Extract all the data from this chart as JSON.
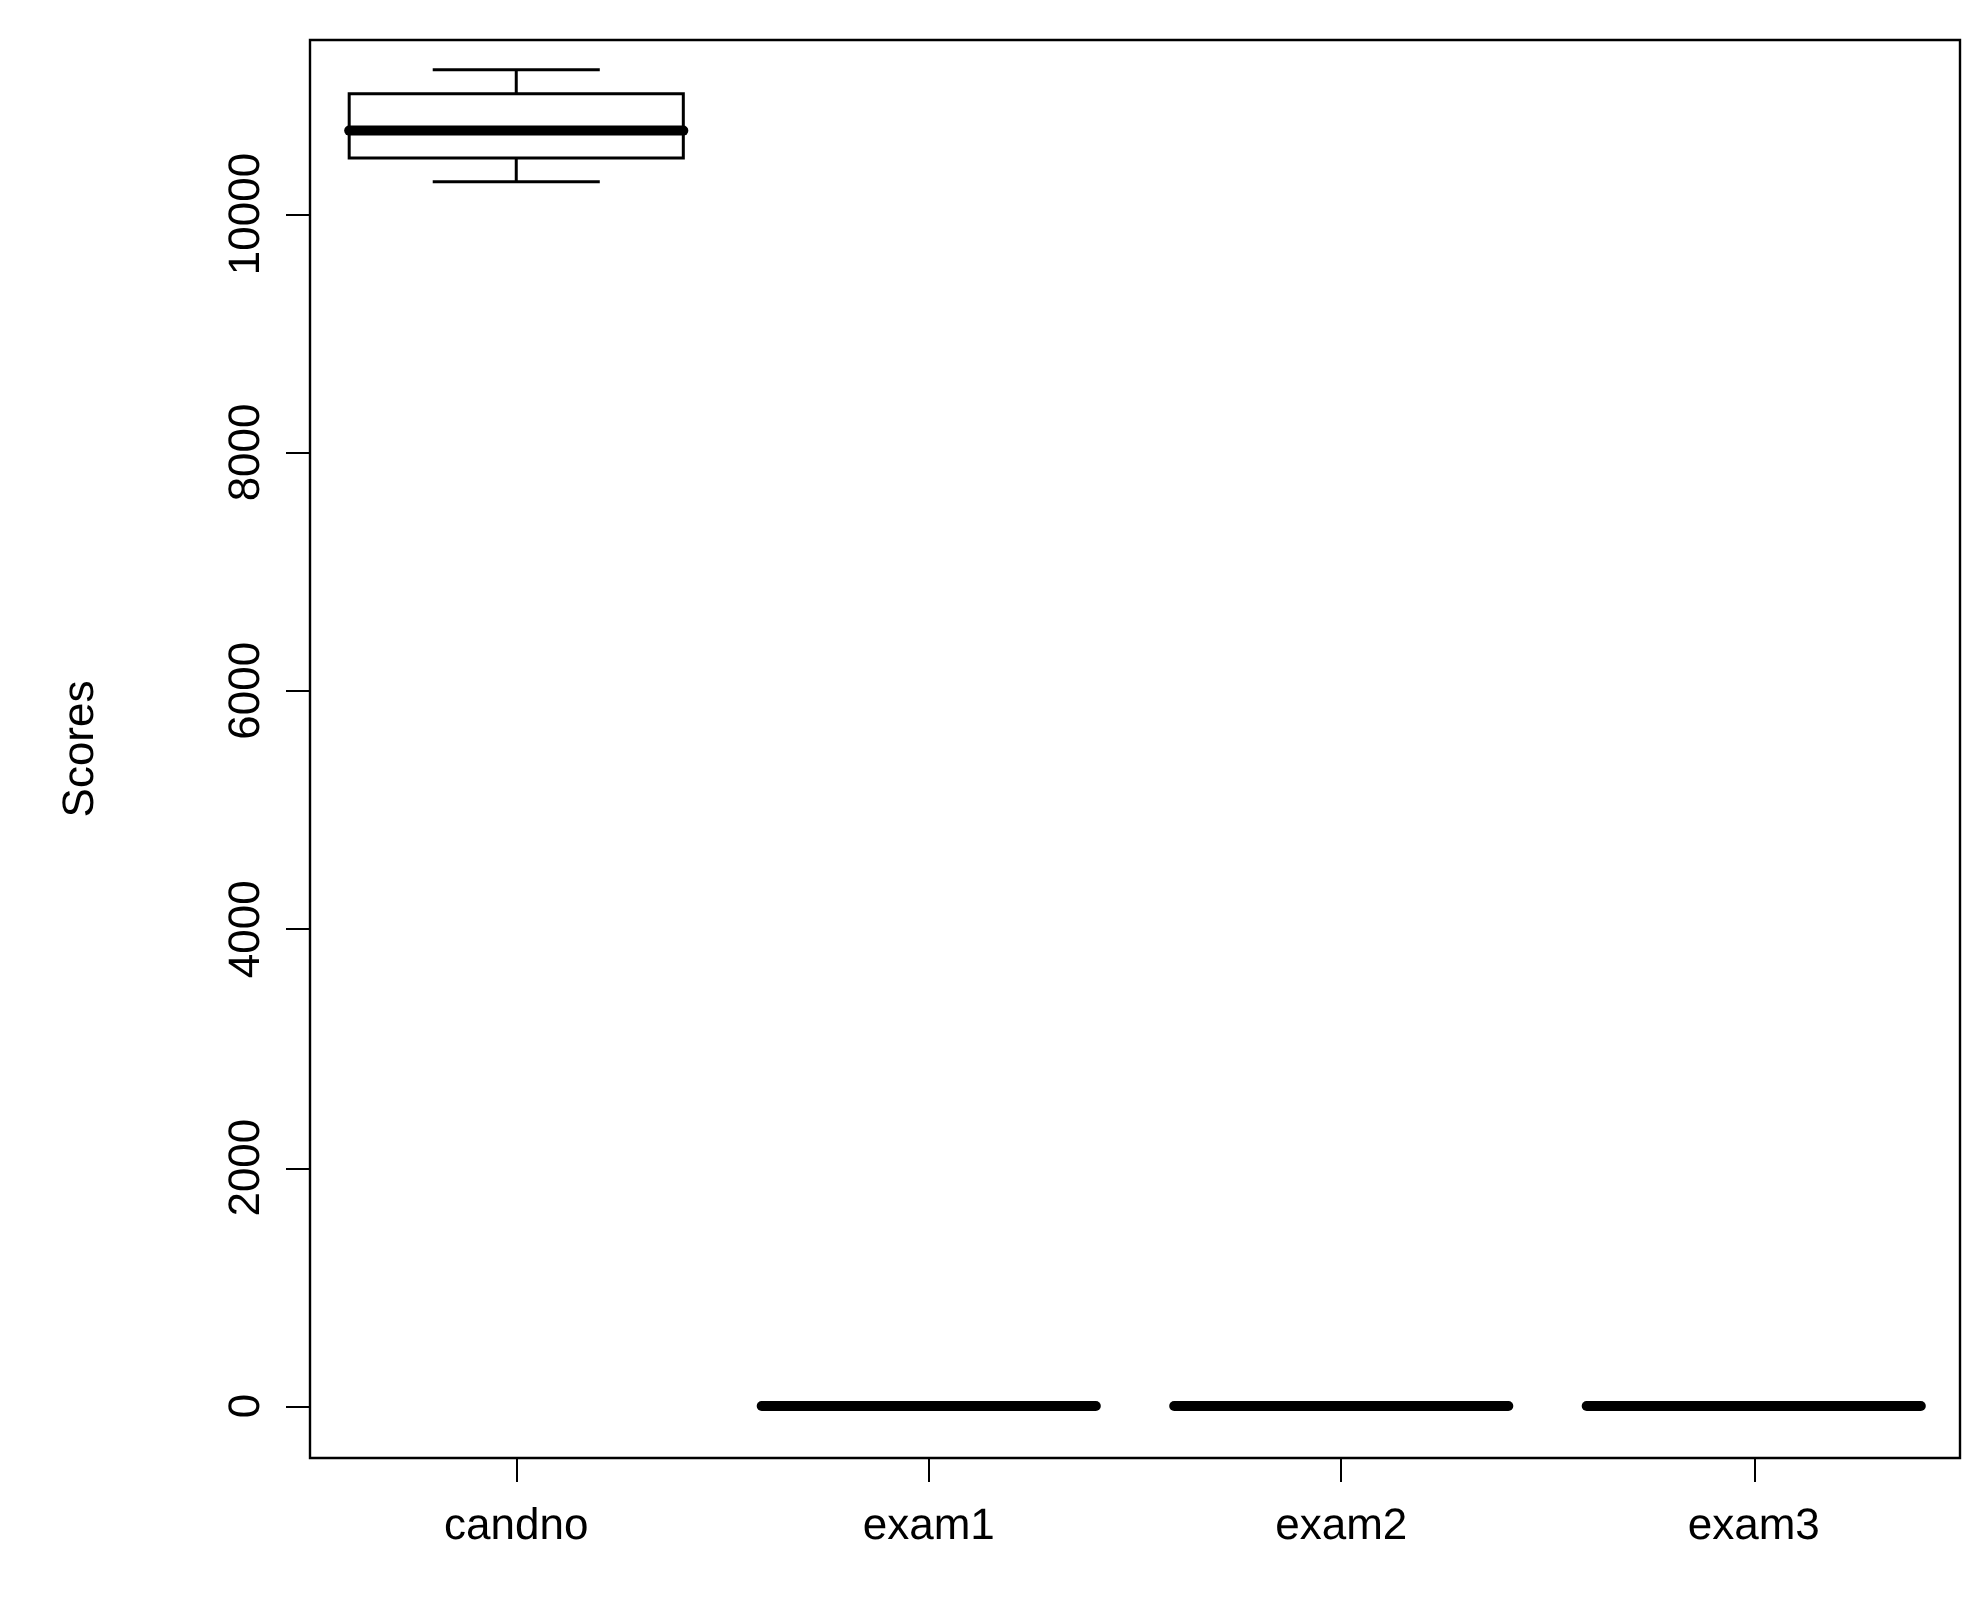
{
  "chart_data": {
    "type": "box",
    "ylabel": "Scores",
    "categories": [
      "candno",
      "exam1",
      "exam2",
      "exam3"
    ],
    "boxes": [
      {
        "low": 10270,
        "q1": 10470,
        "median": 10700,
        "q3": 11010,
        "high": 11210
      },
      {
        "low": 0,
        "q1": 0,
        "median": 0,
        "q3": 0,
        "high": 0
      },
      {
        "low": 0,
        "q1": 0,
        "median": 0,
        "q3": 0,
        "high": 0
      },
      {
        "low": 0,
        "q1": 0,
        "median": 0,
        "q3": 0,
        "high": 0
      }
    ],
    "ylim": [
      -436,
      11460
    ],
    "yticks": [
      0,
      2000,
      4000,
      6000,
      8000,
      10000
    ]
  }
}
